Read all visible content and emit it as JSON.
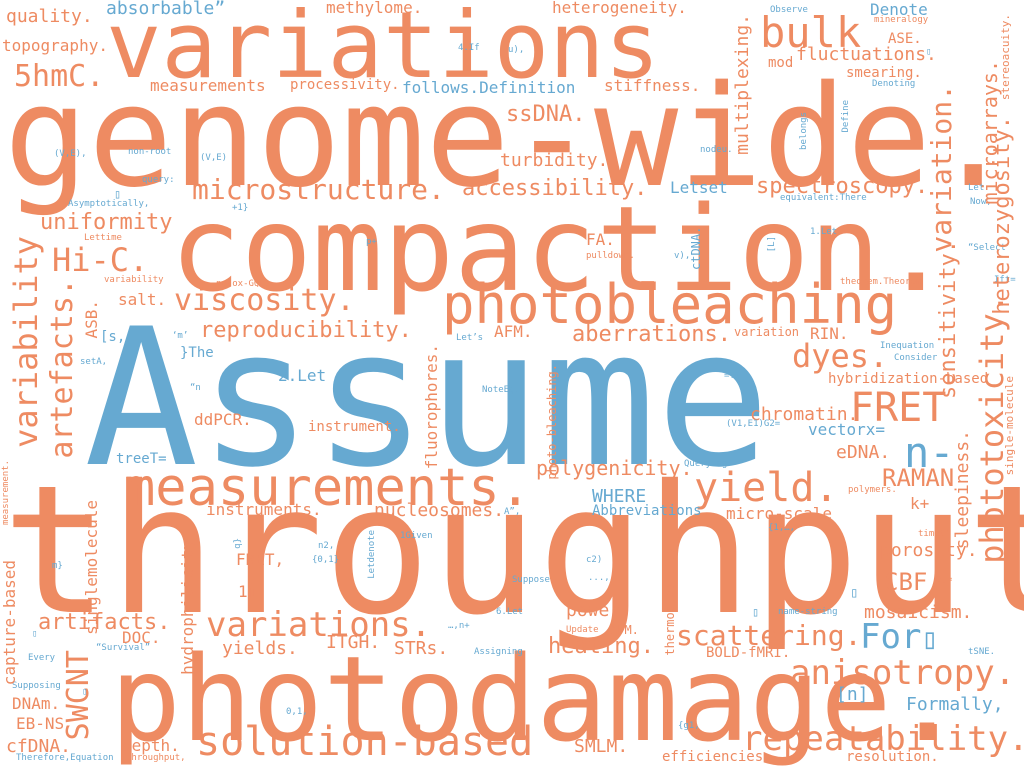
{
  "palette": {
    "primary": "#ee8b62",
    "secondary": "#66a9d1",
    "background": "#ffffff"
  },
  "words": {
    "assume": "Assume",
    "throughput": "throughput.",
    "genome_wide": "genome-wide.",
    "compaction": "compaction.",
    "photodamage": "photodamage.",
    "variations_top": "variations",
    "photobleaching": "photobleaching",
    "measurements_big": "measurements.",
    "solution_based": "solution-based",
    "repeatability": "repeatability.",
    "yield": "yield.",
    "fret_big": "FRET",
    "anisotropy": "anisotropy.",
    "variations_mid": "variations.",
    "for": "For",
    "n_dash": "n-",
    "bulk": "bulk",
    "viscosity": "viscosity.",
    "microstructure": "microstructure.",
    "hi_c": "Hi-C.",
    "fivehmc": "5hmC.",
    "dyes": "dyes.",
    "scattering": "scattering.",
    "variability": "variability",
    "artefacts": "artefacts.",
    "phototoxicity": "phototoxicity.",
    "variation_r": "variation.",
    "heterozygosity": "heterozygosity.",
    "sensitivity": "sensitivity.",
    "swcnt": "SWCNT",
    "spectroscopy": "spectroscopy.",
    "accessibility": "accessibility.",
    "ssdna": "ssDNA.",
    "uniformity": "uniformity",
    "reproducibility": "reproducibility.",
    "aberrations": "aberrations.",
    "polygenicity": "polygenicity.",
    "nucleosomes": "nucleosomes.",
    "fluctuations": "fluctuations.",
    "multiplexing": "multiplexing.",
    "microarrays": "microarrays.",
    "turbidity": "turbidity.",
    "chromatin": "chromatin.",
    "raman": "RAMAN",
    "edna": "eDNA.",
    "porosity": "porosity.",
    "cbf": "CBF.",
    "mosaicism": "mosaicism.",
    "sleepiness": "sleepiness.",
    "artifacts": "artifacts.",
    "heating": "heating.",
    "power": "power.",
    "strs": "STRs.",
    "itgh": "ITGH.",
    "yields": "yields.",
    "doc": "DOC.",
    "smlm": "SMLM.",
    "depth": "depth.",
    "cfdna": "cfDNA.",
    "dnam": "DNAm.",
    "ebns": "EB-NS",
    "capture_based": "capture-based",
    "singlemolecule": "singlemolecule",
    "hydrophilicity": "hydrophilicity",
    "fluorophores": "fluorophores.",
    "instruments": "instruments.",
    "instrument": "instrument.",
    "ddpcr": "ddPCR.",
    "salt": "salt.",
    "asb": "ASB.",
    "afm": "AFM.",
    "fa": "FA.",
    "micro_scale": "micro-scale",
    "fret_small": "FRET,",
    "stiffness": "stiffness.",
    "processivity": "processivity.",
    "measurements_small": "measurements",
    "quality": "quality.",
    "topography": "topography.",
    "methylome": "methylome.",
    "heterogeneity": "heterogeneity.",
    "smearing": "smearing.",
    "ase": "ASE.",
    "denote": "Denote",
    "absorbable": "absorbable”",
    "follows_definition": "follows.Definition",
    "letset": "Letset",
    "vectorx": "vectorx=",
    "where": "WHERE",
    "abbreviations": "Abbreviations",
    "formally": "Formally,",
    "n_bracket": "[n]",
    "the": "}The",
    "two_let": "2.Let",
    "k_plus": "k+",
    "rin": "RIN.",
    "hybridization_based": "hybridization-based",
    "bold_fmri": "BOLD-fMRI.",
    "efficiencies": "efficiencies.",
    "resolution": "resolution.",
    "s_bracket": "[s,",
    "tree_t": "treeT=",
    "ctdna": "ctDNA.",
    "variation_small": "variation",
    "afm_small": "AFM.",
    "update": "Update",
    "thermostability": "thermostability.",
    "photo_bleaching": "photo-bleaching.",
    "one_box": "1",
    "mod": "mod",
    "single_molecule_r": "single-molecule",
    "stereoacuity": "stereoacuity.",
    "observe": "Observe",
    "mineralogy": "mineralogy",
    "denoting": "Denoting",
    "define": "Define",
    "belongs": "belongs",
    "nodeu": "nodeu.",
    "query": "query:",
    "non_root": "non-root",
    "ve": "(V,E),",
    "ve2": "(V,E)",
    "asymptotically": "Asymptotically,",
    "plus1": "+1}",
    "lettime": "Lettime",
    "variability_small": "variability",
    "no_ox_gqds": "no-ox-GQDs",
    "p_plus": "p+",
    "pulldown": "pulldown.",
    "v_paren": "v),",
    "one_let": "1.Let",
    "l_bracket": "[L]",
    "theorem": "theorem.Theorem",
    "equivalent": "equivalent:There",
    "let_r": "Let",
    "now": "Now,",
    "select": "“Select",
    "ift": "Ift=",
    "inequation": "Inequation",
    "consider": "Consider",
    "m_quote": "‘m’",
    "n_quote": "“n",
    "sete": "setA,",
    "lets": "Let’s",
    "noteeq": "NoteEq.",
    "t_eq": "=T\\",
    "v1e1": "(V1,E1)G2=",
    "querying": "Querying",
    "polymers": "polymers.",
    "timet": "timet’",
    "zero_eq": "0,=",
    "set_1": "{1,…,",
    "a_quote": "A”,",
    "given": "1Given",
    "n2": "n2,",
    "set01": "{0,1}",
    "letdenote": "Letdenote",
    "c2": "c2)",
    "suppose": "Suppose",
    "dots": "...,",
    "six_let": "6.Let",
    "n_plus": "…,n+",
    "name_string": "name-string",
    "assigning": "Assigning",
    "survival": "“Survival”",
    "every": "Every",
    "supposing": "Supposing",
    "zero_one": "0,1,",
    "g1": "{g1,",
    "therefore": "Therefore,Equation",
    "throughput_small": "throughput,",
    "measurement_v": "measurement.",
    "m_brace": "m}",
    "q_sym": "q}",
    "four_if": "4.If",
    "u_paren": "u),",
    "tsne": "tSNE.",
    "box": "▯"
  }
}
